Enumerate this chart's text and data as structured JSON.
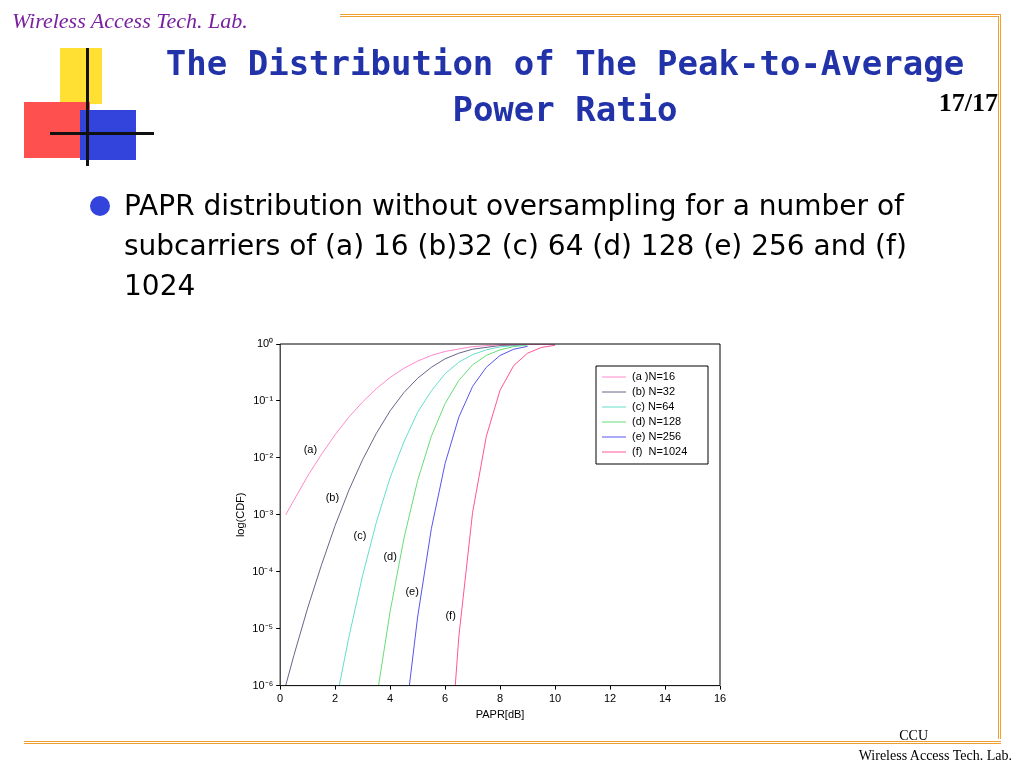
{
  "chart_data": {
    "type": "line",
    "title": "The Distribution of The Peak-to-Average Power Ratio",
    "subtitle": "PAPR distribution without oversampling for a number of subcarriers of (a) 16 (b)32 (c) 64 (d) 128 (e) 256 and (f) 1024",
    "xlabel": "PAPR[dB]",
    "ylabel": "log(CDF)",
    "log": "y",
    "grid": false,
    "legend": "top right",
    "marker": "none",
    "line_style": "solid",
    "xlim": [
      0,
      16
    ],
    "xticks": [
      0,
      2,
      4,
      6,
      8,
      10,
      12,
      14,
      16
    ],
    "ylim": [
      1e-06,
      1
    ],
    "yticks": [
      {
        "value": 1e-06,
        "label": "10⁻⁶"
      },
      {
        "value": 1e-05,
        "label": "10⁻⁵"
      },
      {
        "value": 0.0001,
        "label": "10⁻⁴"
      },
      {
        "value": 0.001,
        "label": "10⁻³"
      },
      {
        "value": 0.01,
        "label": "10⁻²"
      },
      {
        "value": 0.1,
        "label": "10⁻¹"
      },
      {
        "value": 1,
        "label": "10⁰"
      }
    ],
    "series": [
      {
        "name": "(a )N=16",
        "color": "#ff88cc",
        "x": [
          0.2,
          0.5,
          1,
          1.5,
          2,
          2.5,
          3,
          3.5,
          4,
          4.5,
          5,
          5.5,
          6,
          7,
          8,
          10
        ],
        "values": [
          0.001,
          0.0018,
          0.0048,
          0.0115,
          0.0255,
          0.052,
          0.096,
          0.165,
          0.258,
          0.374,
          0.5,
          0.63,
          0.74,
          0.9,
          0.97,
          1
        ]
      },
      {
        "name": "(b) N=32",
        "color": "#666688",
        "x": [
          0.2,
          0.5,
          1,
          1.5,
          2,
          2.5,
          3,
          3.5,
          4,
          4.5,
          5,
          5.5,
          6,
          6.5,
          7,
          8,
          9,
          10
        ],
        "values": [
          1e-06,
          3.4e-06,
          2.3e-05,
          0.00013,
          0.00065,
          0.0027,
          0.0093,
          0.027,
          0.067,
          0.14,
          0.25,
          0.39,
          0.55,
          0.69,
          0.81,
          0.94,
          0.99,
          1
        ]
      },
      {
        "name": "(c) N=64",
        "color": "#66ddcc",
        "x": [
          2.15,
          2.5,
          3,
          3.5,
          4,
          4.5,
          5,
          5.5,
          6,
          6.5,
          7,
          7.5,
          8,
          9
        ],
        "values": [
          1e-06,
          7.1e-06,
          8.6e-05,
          0.00074,
          0.0045,
          0.019,
          0.063,
          0.15,
          0.3,
          0.48,
          0.65,
          0.79,
          0.89,
          0.98
        ]
      },
      {
        "name": "(d) N=128",
        "color": "#66dd77",
        "x": [
          3.58,
          4,
          4.5,
          5,
          5.5,
          6,
          6.5,
          7,
          7.5,
          8,
          8.5,
          9
        ],
        "values": [
          1e-06,
          2e-05,
          0.00038,
          0.004,
          0.024,
          0.09,
          0.23,
          0.43,
          0.63,
          0.79,
          0.9,
          0.96
        ]
      },
      {
        "name": "(e) N=256",
        "color": "#5555ee",
        "x": [
          4.7,
          5,
          5.5,
          6,
          6.5,
          7,
          7.5,
          8,
          8.5,
          9
        ],
        "values": [
          1e-06,
          1.6e-05,
          0.00057,
          0.008,
          0.052,
          0.18,
          0.39,
          0.63,
          0.81,
          0.91
        ]
      },
      {
        "name": "(f)  N=1024",
        "color": "#ff5599",
        "x": [
          6.37,
          6.5,
          7,
          7.5,
          8,
          8.5,
          9,
          9.5,
          10
        ],
        "values": [
          1e-06,
          7.3e-06,
          0.0011,
          0.024,
          0.155,
          0.42,
          0.69,
          0.87,
          0.95
        ]
      }
    ],
    "annotations": [
      "(a)",
      "(b)",
      "(c)",
      "(d)",
      "(e)",
      "(f)",
      "Wireless Access Tech. Lab.",
      "17/17",
      "CCU",
      "Wireless Access Tech. Lab."
    ]
  }
}
